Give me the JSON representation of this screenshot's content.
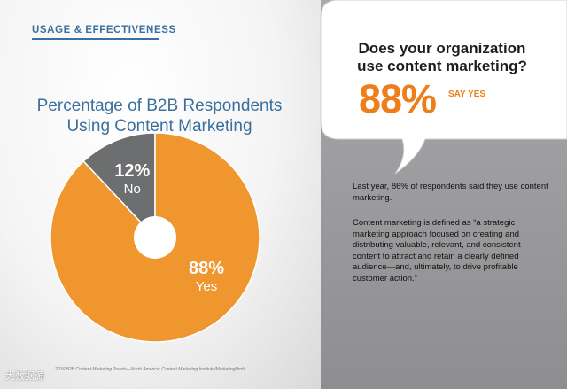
{
  "section_label": "USAGE & EFFECTIVENESS",
  "chart_data": {
    "type": "pie",
    "title": "Percentage of B2B Respondents Using Content Marketing",
    "title_lines": [
      "Percentage of B2B Respondents",
      "Using Content Marketing"
    ],
    "slices": [
      {
        "label": "Yes",
        "value": 88,
        "value_label": "88%",
        "color": "#ef962f"
      },
      {
        "label": "No",
        "value": 12,
        "value_label": "12%",
        "color": "#6d6e70"
      }
    ],
    "donut": true,
    "legend": "none"
  },
  "callout": {
    "title_lines": [
      "Does your organization",
      "use content marketing?"
    ],
    "big_value": "88%",
    "big_value_label": "SAY YES"
  },
  "body": {
    "paragraph_1": "Last year, 86% of respondents said they use content marketing.",
    "paragraph_2": "Content marketing is defined as “a strategic marketing approach focused on creating and distributing valuable, relevant, and consistent content to attract and retain a clearly defined audience—and, ultimately, to drive profitable customer action.”"
  },
  "footer_source": "2016 B2B Content Marketing Trends—North America: Content Marketing Institute/MarketingProfs",
  "watermark": "大数据源",
  "colors": {
    "accent_blue": "#3a6f9e",
    "orange": "#ef7d1a",
    "pie_orange": "#ef962f",
    "pie_gray": "#6d6e70",
    "panel_gray": "#9b9b9d"
  }
}
